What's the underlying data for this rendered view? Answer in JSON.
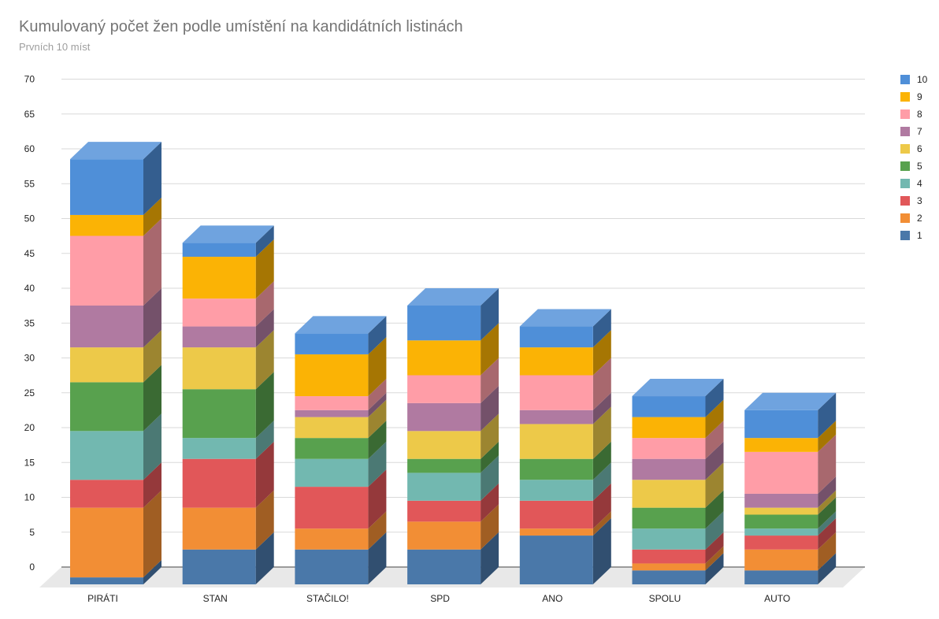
{
  "title": "Kumulovaný počet žen podle umístění na kandidátních listinách",
  "subtitle": "Prvních 10 míst",
  "chart_data": {
    "type": "bar",
    "stacked": true,
    "three_d": true,
    "categories": [
      "PIRÁTI",
      "STAN",
      "STAČILO!",
      "SPD",
      "ANO",
      "SPOLU",
      "AUTO"
    ],
    "y_ticks": [
      "0",
      "5",
      "10",
      "15",
      "20",
      "25",
      "30",
      "35",
      "40",
      "45",
      "50",
      "55",
      "60",
      "65",
      "70"
    ],
    "ylim": [
      0,
      70
    ],
    "grid": true,
    "legend_position": "right",
    "series": [
      {
        "name": "1",
        "color": "#4a78a9",
        "values": [
          1,
          5,
          5,
          5,
          7,
          2,
          2
        ]
      },
      {
        "name": "2",
        "color": "#f28e35",
        "values": [
          10,
          6,
          3,
          4,
          1,
          1,
          3
        ]
      },
      {
        "name": "3",
        "color": "#e15759",
        "values": [
          4,
          7,
          6,
          3,
          4,
          2,
          2
        ]
      },
      {
        "name": "4",
        "color": "#72b8b0",
        "values": [
          7,
          3,
          4,
          4,
          3,
          3,
          1
        ]
      },
      {
        "name": "5",
        "color": "#58a14e",
        "values": [
          7,
          7,
          3,
          2,
          3,
          3,
          2
        ]
      },
      {
        "name": "6",
        "color": "#edc949",
        "values": [
          5,
          6,
          3,
          4,
          5,
          4,
          1
        ]
      },
      {
        "name": "7",
        "color": "#b07aa1",
        "values": [
          6,
          3,
          1,
          4,
          2,
          3,
          2
        ]
      },
      {
        "name": "8",
        "color": "#ff9da7",
        "values": [
          10,
          4,
          2,
          4,
          5,
          3,
          6
        ]
      },
      {
        "name": "9",
        "color": "#fbb305",
        "values": [
          3,
          6,
          6,
          5,
          4,
          3,
          2
        ]
      },
      {
        "name": "10",
        "color": "#4f8fd8",
        "values": [
          8,
          2,
          3,
          5,
          3,
          3,
          4
        ]
      }
    ]
  }
}
